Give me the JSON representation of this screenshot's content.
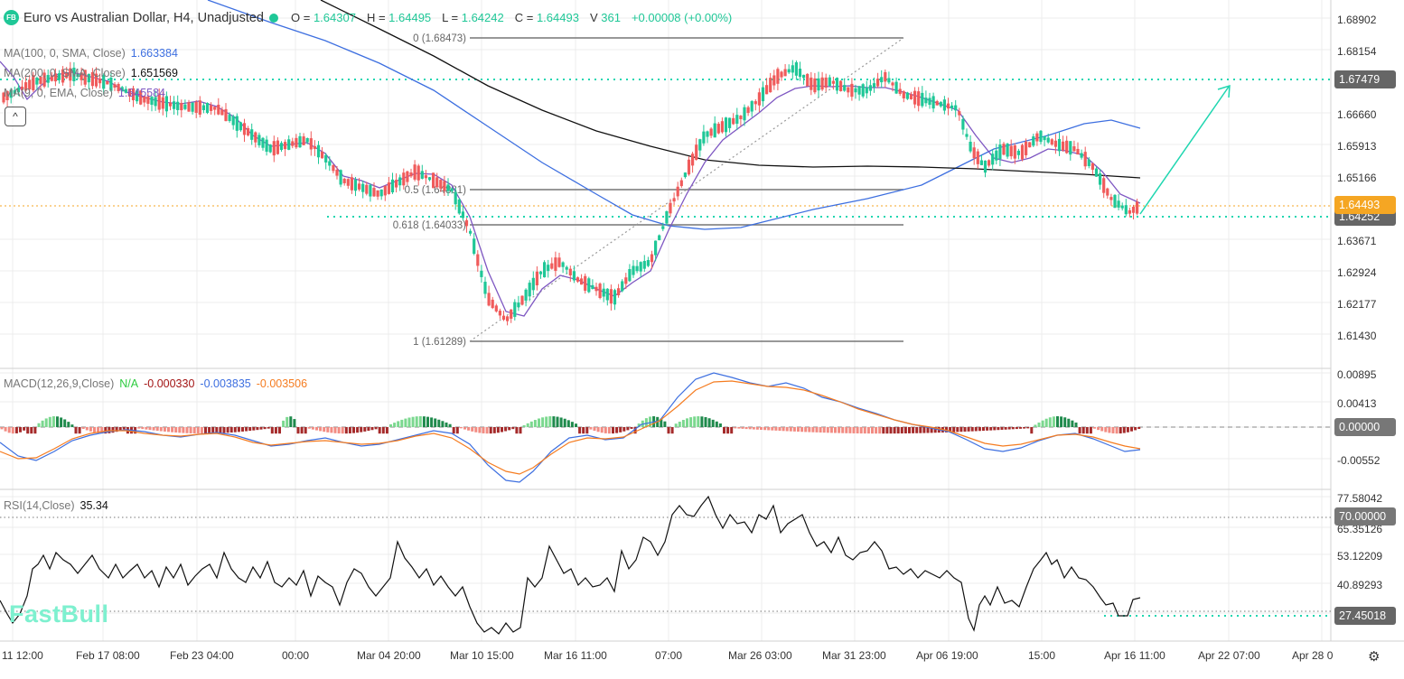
{
  "header": {
    "badge": "FB",
    "title": "Euro vs Australian Dollar, H4, Unadjusted",
    "ohlc": [
      {
        "label": "O =",
        "value": "1.64307"
      },
      {
        "label": "H =",
        "value": "1.64495"
      },
      {
        "label": "L =",
        "value": "1.64242"
      },
      {
        "label": "C =",
        "value": "1.64493"
      },
      {
        "label": "V",
        "value": "361"
      }
    ],
    "change": "+0.00008 (+0.00%)"
  },
  "indicators": {
    "ma100": {
      "label": "MA(100, 0, SMA, Close)",
      "value": "1.663384",
      "color": "#3d6fe0"
    },
    "ma200": {
      "label": "MA(200, 0, SMA, Close)",
      "value": "1.651569",
      "color": "#111111"
    },
    "ema9": {
      "label": "MA(9, 0, EMA, Close)",
      "value": "1.645584",
      "color": "#7e57c2"
    },
    "macd": {
      "label": "MACD(12,26,9,Close)",
      "hist": "N/A",
      "v1": "-0.000330",
      "v2": "-0.003835",
      "v3": "-0.003506"
    },
    "rsi": {
      "label": "RSI(14,Close)",
      "value": "35.34"
    }
  },
  "price_axis": {
    "ticks": [
      "1.68902",
      "1.68154",
      "1.66660",
      "1.65913",
      "1.65166",
      "1.63671",
      "1.62924",
      "1.62177",
      "1.61430"
    ],
    "tag_level": "1.67479",
    "tag_current": "1.64493",
    "tag_hidden": "1.64252"
  },
  "macd_axis": {
    "ticks": [
      "0.00895",
      "0.00413",
      "-0.00552"
    ],
    "tag_zero": "0.00000"
  },
  "rsi_axis": {
    "ticks": [
      "77.58042",
      "65.35126",
      "53.12209",
      "40.89293"
    ],
    "tag_70": "70.00000",
    "tag_low": "27.45018"
  },
  "fibonacci": [
    {
      "label": "0 (1.68473)"
    },
    {
      "label": "0.5 (1.64881)"
    },
    {
      "label": "0.618 (1.64033)"
    },
    {
      "label": "1 (1.61289)"
    }
  ],
  "time_axis": [
    "11 12:00",
    "Feb 17 08:00",
    "Feb 23 04:00",
    "00:00",
    "Mar 04 20:00",
    "Mar 10 15:00",
    "Mar 16 11:00",
    "07:00",
    "Mar 26 03:00",
    "Mar 31 23:00",
    "Apr 06 19:00",
    "15:00",
    "Apr 16 11:00",
    "Apr 22 07:00",
    "Apr 28 0"
  ],
  "watermark": "FastBull",
  "icons": {
    "collapse": "^",
    "settings": "⚙"
  },
  "colors": {
    "up": "#1fc797",
    "down": "#f05b5b",
    "accent": "#1fc797",
    "current_tag": "#f5a623",
    "level_tag": "#666666"
  },
  "chart_data": {
    "type": "candlestick",
    "title": "Euro vs Australian Dollar, H4, Unadjusted",
    "x": [
      "Feb 11 12:00",
      "Feb 17 08:00",
      "Feb 23 04:00",
      "Feb 29 00:00",
      "Mar 04 20:00",
      "Mar 10 15:00",
      "Mar 16 11:00",
      "Mar 21 07:00",
      "Mar 26 03:00",
      "Mar 31 23:00",
      "Apr 06 19:00",
      "Apr 11 15:00",
      "Apr 16 11:00"
    ],
    "approx_close": [
      1.668,
      1.672,
      1.664,
      1.66,
      1.652,
      1.617,
      1.63,
      1.64,
      1.677,
      1.675,
      1.668,
      1.659,
      1.6449
    ],
    "last": {
      "open": 1.64307,
      "high": 1.64495,
      "low": 1.64242,
      "close": 1.64493,
      "volume": 361
    },
    "ylim": [
      1.608,
      1.692
    ],
    "series": [
      {
        "name": "MA(100, 0, SMA, Close)",
        "last": 1.663384
      },
      {
        "name": "MA(200, 0, SMA, Close)",
        "last": 1.651569
      },
      {
        "name": "MA(9, 0, EMA, Close)",
        "last": 1.645584
      }
    ],
    "horizontal_levels": [
      1.67479,
      1.64252
    ],
    "fibonacci": {
      "0": 1.68473,
      "0.5": 1.64881,
      "0.618": 1.64033,
      "1": 1.61289
    },
    "subcharts": [
      {
        "name": "MACD(12,26,9,Close)",
        "macd": -0.003835,
        "signal": -0.003506,
        "hist": -0.00033,
        "ylim": [
          -0.008,
          0.0095
        ]
      },
      {
        "name": "RSI(14,Close)",
        "value": 35.34,
        "overbought": 70,
        "ylim": [
          24,
          80
        ]
      }
    ]
  }
}
